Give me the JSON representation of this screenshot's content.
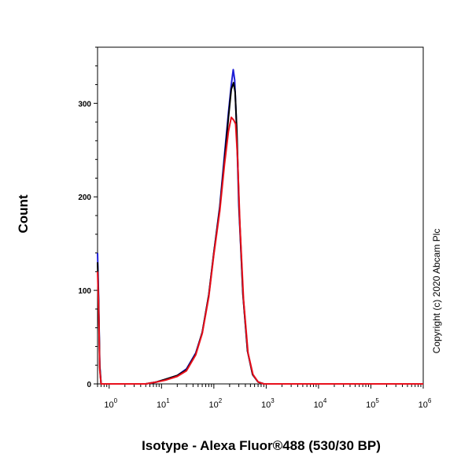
{
  "chart_data": {
    "type": "line",
    "title": "",
    "xlabel": "Isotype - Alexa Fluor®488 (530/30 BP)",
    "ylabel": "Count",
    "x_scale": "log",
    "xlim": [
      0.6,
      1000000
    ],
    "ylim": [
      0,
      360
    ],
    "x_ticks": [
      {
        "value": 1,
        "base": "10",
        "exp": "0"
      },
      {
        "value": 10,
        "base": "10",
        "exp": "1"
      },
      {
        "value": 100,
        "base": "10",
        "exp": "2"
      },
      {
        "value": 1000,
        "base": "10",
        "exp": "3"
      },
      {
        "value": 10000,
        "base": "10",
        "exp": "4"
      },
      {
        "value": 100000,
        "base": "10",
        "exp": "5"
      },
      {
        "value": 1000000,
        "base": "10",
        "exp": "6"
      }
    ],
    "y_ticks": [
      "0",
      "100",
      "200",
      "300"
    ],
    "grid": false,
    "legend": "none",
    "annotation": "Copyright (c) 2020 Abcam Plc",
    "series": [
      {
        "color": "#1f1fd6",
        "points": [
          [
            0.6,
            140
          ],
          [
            0.63,
            90
          ],
          [
            0.66,
            20
          ],
          [
            0.7,
            0
          ],
          [
            5,
            0
          ],
          [
            8,
            2
          ],
          [
            12,
            5
          ],
          [
            20,
            9
          ],
          [
            30,
            16
          ],
          [
            45,
            33
          ],
          [
            60,
            55
          ],
          [
            80,
            95
          ],
          [
            100,
            140
          ],
          [
            130,
            190
          ],
          [
            160,
            245
          ],
          [
            190,
            290
          ],
          [
            215,
            320
          ],
          [
            235,
            336
          ],
          [
            250,
            325
          ],
          [
            270,
            280
          ],
          [
            300,
            190
          ],
          [
            360,
            95
          ],
          [
            440,
            35
          ],
          [
            550,
            10
          ],
          [
            700,
            2
          ],
          [
            900,
            0
          ],
          [
            1000000,
            0
          ]
        ]
      },
      {
        "color": "#000000",
        "points": [
          [
            0.6,
            130
          ],
          [
            0.63,
            85
          ],
          [
            0.66,
            18
          ],
          [
            0.7,
            0
          ],
          [
            5,
            0
          ],
          [
            8,
            2
          ],
          [
            12,
            5
          ],
          [
            20,
            9
          ],
          [
            30,
            15
          ],
          [
            45,
            32
          ],
          [
            60,
            55
          ],
          [
            80,
            95
          ],
          [
            100,
            140
          ],
          [
            130,
            188
          ],
          [
            160,
            240
          ],
          [
            190,
            285
          ],
          [
            215,
            315
          ],
          [
            238,
            322
          ],
          [
            255,
            312
          ],
          [
            275,
            270
          ],
          [
            305,
            185
          ],
          [
            360,
            95
          ],
          [
            440,
            35
          ],
          [
            550,
            10
          ],
          [
            700,
            2
          ],
          [
            900,
            0
          ],
          [
            1000000,
            0
          ]
        ]
      },
      {
        "color": "#e8101c",
        "points": [
          [
            0.6,
            120
          ],
          [
            0.63,
            80
          ],
          [
            0.66,
            15
          ],
          [
            0.7,
            0
          ],
          [
            5,
            0
          ],
          [
            8,
            2
          ],
          [
            12,
            4
          ],
          [
            20,
            8
          ],
          [
            30,
            14
          ],
          [
            45,
            31
          ],
          [
            60,
            54
          ],
          [
            80,
            93
          ],
          [
            100,
            138
          ],
          [
            130,
            185
          ],
          [
            160,
            235
          ],
          [
            190,
            270
          ],
          [
            215,
            285
          ],
          [
            240,
            282
          ],
          [
            260,
            278
          ],
          [
            285,
            240
          ],
          [
            315,
            170
          ],
          [
            370,
            90
          ],
          [
            450,
            33
          ],
          [
            560,
            10
          ],
          [
            700,
            2
          ],
          [
            900,
            0
          ],
          [
            1000000,
            0
          ]
        ]
      }
    ]
  }
}
